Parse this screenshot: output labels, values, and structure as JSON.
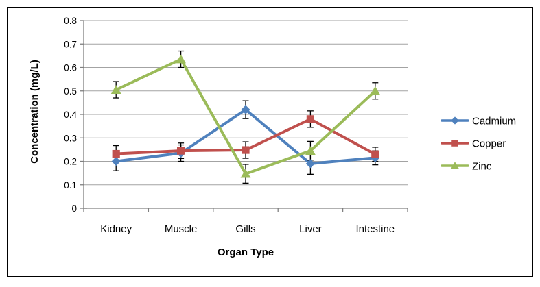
{
  "chart_data": {
    "type": "line",
    "title": "",
    "xlabel": "Organ Type",
    "ylabel": "Concentration (mg/L)",
    "categories": [
      "Kidney",
      "Muscle",
      "Gills",
      "Liver",
      "Intestine"
    ],
    "ylim": [
      0,
      0.8
    ],
    "ytick_step": 0.1,
    "ytick_labels": [
      "0",
      "0.1",
      "0.2",
      "0.3",
      "0.4",
      "0.5",
      "0.6",
      "0.7",
      "0.8"
    ],
    "grid": true,
    "legend_position": "right",
    "error_bars": true,
    "series": [
      {
        "name": "Cadmium",
        "marker": "diamond",
        "color": "#4F81BD",
        "values": [
          0.2,
          0.235,
          0.42,
          0.19,
          0.215
        ],
        "errors": [
          0.04,
          0.035,
          0.038,
          0.045,
          0.03
        ]
      },
      {
        "name": "Copper",
        "marker": "square",
        "color": "#C0504D",
        "values": [
          0.232,
          0.245,
          0.248,
          0.38,
          0.23
        ],
        "errors": [
          0.035,
          0.033,
          0.035,
          0.035,
          0.03
        ]
      },
      {
        "name": "Zinc",
        "marker": "triangle-up",
        "color": "#9BBB59",
        "values": [
          0.505,
          0.635,
          0.147,
          0.245,
          0.5
        ],
        "errors": [
          0.035,
          0.035,
          0.04,
          0.04,
          0.035
        ]
      }
    ],
    "colors": {
      "gridline": "#A3A3A3",
      "axis": "#808080",
      "error_bar": "#000000",
      "text": "#000000",
      "border": "#000000",
      "background": "#FFFFFF"
    }
  }
}
